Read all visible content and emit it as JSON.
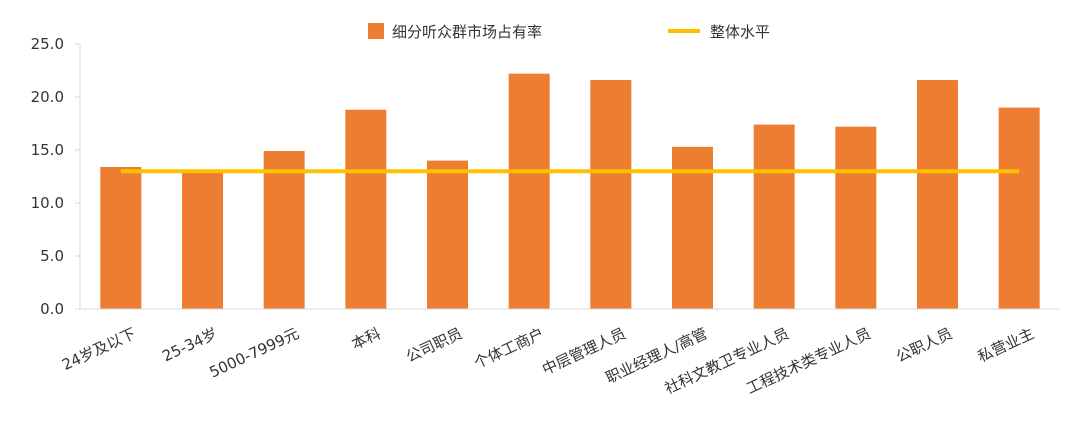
{
  "chart_data": {
    "type": "bar",
    "categories": [
      "24岁及以下",
      "25-34岁",
      "5000-7999元",
      "本科",
      "公司职员",
      "个体工商户",
      "中层管理人员",
      "职业经理人/高管",
      "社科文教卫专业人员",
      "工程技术类专业人员",
      "公职人员",
      "私营业主"
    ],
    "series": [
      {
        "name": "细分听众群市场占有率",
        "values": [
          13.4,
          13.1,
          14.9,
          18.8,
          14.0,
          22.2,
          21.6,
          15.3,
          17.4,
          17.2,
          21.6,
          19.0
        ],
        "color": "#ED7D31"
      }
    ],
    "reference_line": {
      "name": "整体水平",
      "value": 13.0,
      "color": "#FFC000"
    },
    "ylim": [
      0,
      25
    ],
    "yticks": [
      "0.0",
      "5.0",
      "10.0",
      "15.0",
      "20.0",
      "25.0"
    ],
    "grid": false,
    "legend_position": "top-center"
  }
}
